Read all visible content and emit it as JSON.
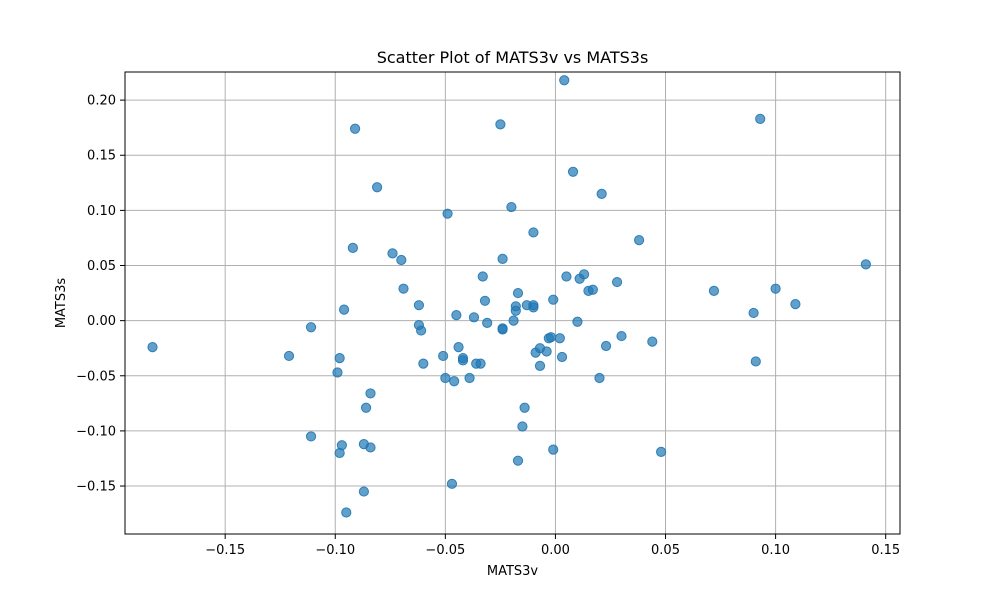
{
  "chart_data": {
    "type": "scatter",
    "title": "Scatter Plot of MATS3v vs MATS3s",
    "xlabel": "MATS3v",
    "ylabel": "MATS3s",
    "xlim": [
      -0.1955,
      0.1565
    ],
    "ylim": [
      -0.1935,
      0.2255
    ],
    "xticks": [
      -0.15,
      -0.1,
      -0.05,
      0.0,
      0.05,
      0.1,
      0.15
    ],
    "xtick_labels": [
      "−0.15",
      "−0.10",
      "−0.05",
      "0.00",
      "0.05",
      "0.10",
      "0.15"
    ],
    "yticks": [
      -0.15,
      -0.1,
      -0.05,
      0.0,
      0.05,
      0.1,
      0.15,
      0.2
    ],
    "ytick_labels": [
      "−0.15",
      "−0.10",
      "−0.05",
      "0.00",
      "0.05",
      "0.10",
      "0.15",
      "0.20"
    ],
    "grid": true,
    "point_color": "#1f77b4",
    "points": [
      [
        -0.183,
        -0.024
      ],
      [
        -0.121,
        -0.032
      ],
      [
        -0.111,
        -0.006
      ],
      [
        -0.111,
        -0.105
      ],
      [
        -0.099,
        -0.047
      ],
      [
        -0.098,
        -0.034
      ],
      [
        -0.098,
        -0.12
      ],
      [
        -0.097,
        -0.113
      ],
      [
        -0.096,
        0.01
      ],
      [
        -0.095,
        -0.174
      ],
      [
        -0.092,
        0.066
      ],
      [
        -0.091,
        0.174
      ],
      [
        -0.087,
        -0.112
      ],
      [
        -0.087,
        -0.155
      ],
      [
        -0.086,
        -0.079
      ],
      [
        -0.084,
        -0.066
      ],
      [
        -0.084,
        -0.115
      ],
      [
        -0.081,
        0.121
      ],
      [
        -0.074,
        0.061
      ],
      [
        -0.07,
        0.055
      ],
      [
        -0.069,
        0.029
      ],
      [
        -0.062,
        0.014
      ],
      [
        -0.062,
        -0.004
      ],
      [
        -0.061,
        -0.009
      ],
      [
        -0.06,
        -0.039
      ],
      [
        -0.051,
        -0.032
      ],
      [
        -0.05,
        -0.052
      ],
      [
        -0.049,
        0.097
      ],
      [
        -0.047,
        -0.148
      ],
      [
        -0.046,
        -0.055
      ],
      [
        -0.045,
        0.005
      ],
      [
        -0.044,
        -0.024
      ],
      [
        -0.042,
        -0.036
      ],
      [
        -0.042,
        -0.034
      ],
      [
        -0.039,
        -0.052
      ],
      [
        -0.037,
        0.003
      ],
      [
        -0.036,
        -0.039
      ],
      [
        -0.034,
        -0.039
      ],
      [
        -0.033,
        0.04
      ],
      [
        -0.032,
        0.018
      ],
      [
        -0.031,
        -0.002
      ],
      [
        -0.025,
        0.178
      ],
      [
        -0.024,
        0.056
      ],
      [
        -0.024,
        -0.007
      ],
      [
        -0.024,
        -0.008
      ],
      [
        -0.02,
        0.103
      ],
      [
        -0.019,
        0.0
      ],
      [
        -0.018,
        0.013
      ],
      [
        -0.018,
        0.009
      ],
      [
        -0.017,
        0.025
      ],
      [
        -0.017,
        -0.127
      ],
      [
        -0.015,
        -0.096
      ],
      [
        -0.014,
        -0.079
      ],
      [
        -0.013,
        0.014
      ],
      [
        -0.01,
        0.014
      ],
      [
        -0.01,
        0.08
      ],
      [
        -0.01,
        0.012
      ],
      [
        -0.009,
        -0.029
      ],
      [
        -0.007,
        -0.025
      ],
      [
        -0.007,
        -0.041
      ],
      [
        -0.004,
        -0.028
      ],
      [
        -0.003,
        -0.016
      ],
      [
        -0.002,
        -0.015
      ],
      [
        -0.001,
        0.019
      ],
      [
        -0.001,
        -0.117
      ],
      [
        0.002,
        -0.016
      ],
      [
        0.003,
        -0.033
      ],
      [
        0.004,
        0.218
      ],
      [
        0.005,
        0.04
      ],
      [
        0.008,
        0.135
      ],
      [
        0.01,
        -0.001
      ],
      [
        0.011,
        0.038
      ],
      [
        0.013,
        0.042
      ],
      [
        0.015,
        0.027
      ],
      [
        0.017,
        0.028
      ],
      [
        0.02,
        -0.052
      ],
      [
        0.021,
        0.115
      ],
      [
        0.023,
        -0.023
      ],
      [
        0.028,
        0.035
      ],
      [
        0.03,
        -0.014
      ],
      [
        0.038,
        0.073
      ],
      [
        0.044,
        -0.019
      ],
      [
        0.048,
        -0.119
      ],
      [
        0.072,
        0.027
      ],
      [
        0.09,
        0.007
      ],
      [
        0.091,
        -0.037
      ],
      [
        0.093,
        0.183
      ],
      [
        0.1,
        0.029
      ],
      [
        0.109,
        0.015
      ],
      [
        0.141,
        0.051
      ]
    ]
  }
}
